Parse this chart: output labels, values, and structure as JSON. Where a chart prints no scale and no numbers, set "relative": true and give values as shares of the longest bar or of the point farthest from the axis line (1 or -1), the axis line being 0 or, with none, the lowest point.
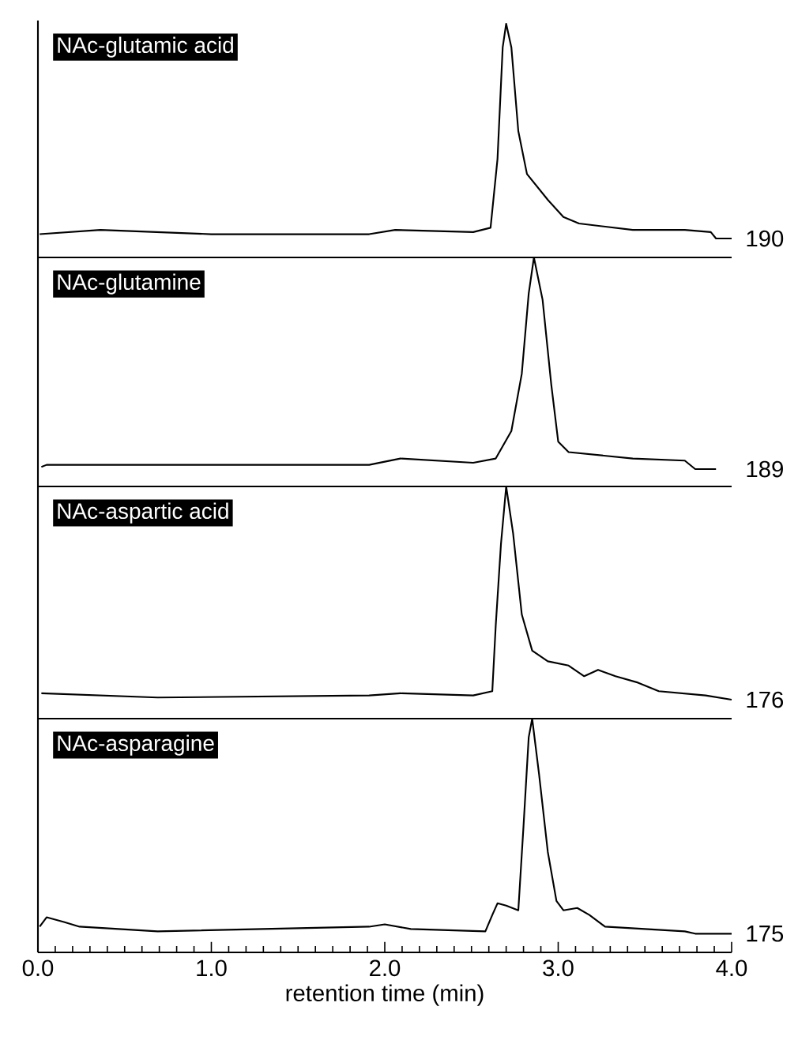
{
  "chart_data": [
    {
      "type": "line",
      "title": "NAc-glutamic acid",
      "relative": true,
      "xlim": [
        0,
        4
      ],
      "tick_labels": false,
      "color": "#000000",
      "annotations": [
        "190"
      ],
      "x": [
        0.01,
        0.36,
        1.0,
        1.91,
        2.06,
        2.51,
        2.61,
        2.65,
        2.68,
        2.7,
        2.73,
        2.77,
        2.82,
        2.94,
        3.03,
        3.12,
        3.43,
        3.73,
        3.88,
        3.91,
        4.0
      ],
      "values": [
        0.02,
        0.04,
        0.02,
        0.02,
        0.04,
        0.03,
        0.05,
        0.37,
        0.89,
        1.0,
        0.89,
        0.5,
        0.3,
        0.18,
        0.1,
        0.07,
        0.04,
        0.04,
        0.03,
        0,
        0
      ]
    },
    {
      "type": "line",
      "title": "NAc-glutamine",
      "relative": true,
      "xlim": [
        0,
        4
      ],
      "tick_labels": false,
      "color": "#000000",
      "annotations": [
        "189"
      ],
      "x": [
        0.02,
        0.05,
        1.91,
        2.09,
        2.51,
        2.64,
        2.73,
        2.79,
        2.83,
        2.86,
        2.91,
        2.96,
        3.0,
        3.06,
        3.43,
        3.73,
        3.79,
        3.91
      ],
      "values": [
        0.01,
        0.02,
        0.02,
        0.05,
        0.03,
        0.05,
        0.18,
        0.45,
        0.83,
        1.0,
        0.8,
        0.4,
        0.13,
        0.08,
        0.05,
        0.04,
        0,
        0
      ]
    },
    {
      "type": "line",
      "title": "NAc-aspartic acid",
      "relative": true,
      "xlim": [
        0,
        4
      ],
      "tick_labels": false,
      "color": "#000000",
      "annotations": [
        "176"
      ],
      "x": [
        0.02,
        0.69,
        1.91,
        2.09,
        2.51,
        2.62,
        2.64,
        2.67,
        2.7,
        2.74,
        2.79,
        2.85,
        2.94,
        3.06,
        3.15,
        3.23,
        3.33,
        3.46,
        3.58,
        3.85,
        4.0
      ],
      "values": [
        0.03,
        0.01,
        0.02,
        0.03,
        0.02,
        0.04,
        0.35,
        0.73,
        1.0,
        0.78,
        0.4,
        0.23,
        0.18,
        0.16,
        0.11,
        0.14,
        0.11,
        0.08,
        0.04,
        0.02,
        0
      ]
    },
    {
      "type": "line",
      "title": "NAc-asparagine",
      "relative": true,
      "xlim": [
        0,
        4
      ],
      "tick_labels": "x",
      "color": "#000000",
      "annotations": [
        "175"
      ],
      "xlabel": "retention time (min)",
      "xticks": [
        {
          "value": 0,
          "label": "0.0"
        },
        {
          "value": 1,
          "label": "1.0"
        },
        {
          "value": 2,
          "label": "2.0"
        },
        {
          "value": 3,
          "label": "3.0"
        },
        {
          "value": 4,
          "label": "4.0"
        }
      ],
      "x": [
        0.01,
        0.05,
        0.15,
        0.24,
        0.69,
        1.91,
        2.0,
        2.15,
        2.58,
        2.62,
        2.65,
        2.7,
        2.77,
        2.8,
        2.83,
        2.85,
        2.89,
        2.94,
        2.99,
        3.03,
        3.11,
        3.18,
        3.27,
        3.73,
        3.79,
        4.0
      ],
      "values": [
        0.11,
        0.15,
        0.13,
        0.11,
        0.09,
        0.11,
        0.12,
        0.1,
        0.09,
        0.16,
        0.21,
        0.2,
        0.18,
        0.54,
        0.92,
        1.0,
        0.76,
        0.43,
        0.22,
        0.18,
        0.19,
        0.16,
        0.11,
        0.09,
        0.08,
        0.08
      ]
    }
  ]
}
